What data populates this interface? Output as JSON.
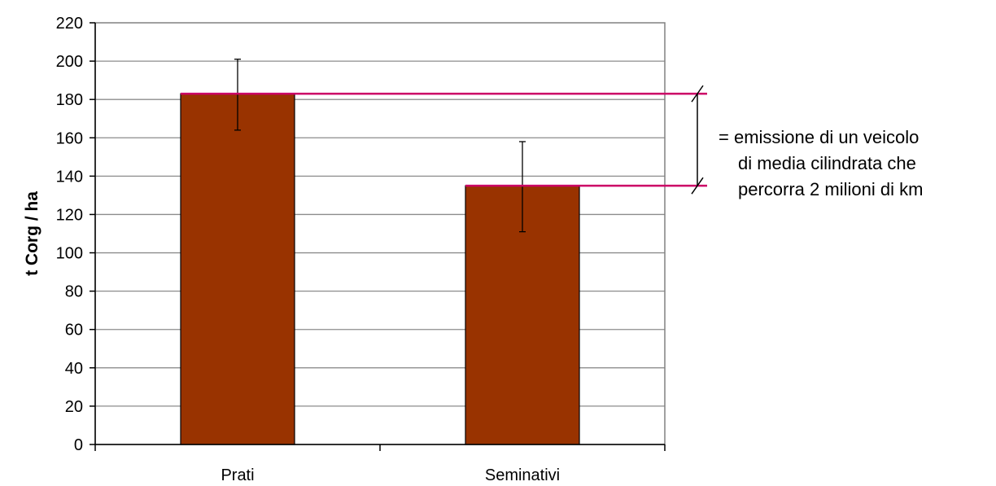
{
  "chart_data": {
    "type": "bar",
    "categories": [
      "Prati",
      "Seminativi"
    ],
    "values": [
      183,
      135
    ],
    "error_bars": [
      {
        "low": 164,
        "high": 201
      },
      {
        "low": 111,
        "high": 158
      }
    ],
    "title": "",
    "xlabel": "",
    "ylabel": "t Corg / ha",
    "ylim": [
      0,
      220
    ],
    "yticks": [
      0,
      20,
      40,
      60,
      80,
      100,
      120,
      140,
      160,
      180,
      200,
      220
    ],
    "grid": true,
    "legend": "none",
    "bar_color": "#993300",
    "reference_lines": [
      {
        "value": 183,
        "color": "#cc0066"
      },
      {
        "value": 135,
        "color": "#cc0066"
      }
    ],
    "annotation": {
      "lines": [
        "= emissione di un veicolo",
        "di media cilindrata che",
        "percorra 2 milioni di km"
      ]
    }
  }
}
